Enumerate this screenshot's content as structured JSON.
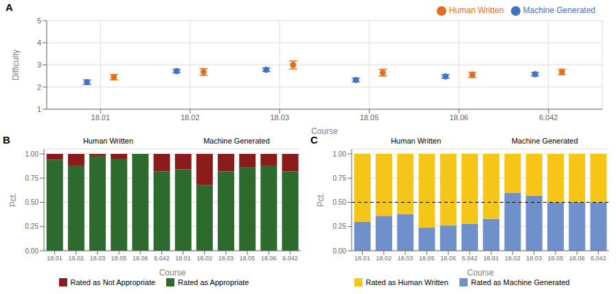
{
  "chart_data": [
    {
      "type": "scatter",
      "title": "A",
      "xlabel": "Course",
      "ylabel": "Difficulty",
      "categories": [
        "18.01",
        "18.02",
        "18.03",
        "18.05",
        "18.06",
        "6.042"
      ],
      "series": [
        {
          "name": "Machine Generated",
          "color": "#4472C4",
          "values": [
            2.22,
            2.72,
            2.78,
            2.32,
            2.48,
            2.58
          ],
          "error_low": [
            0.1,
            0.08,
            0.08,
            0.08,
            0.08,
            0.08
          ],
          "error_high": [
            0.1,
            0.08,
            0.08,
            0.08,
            0.08,
            0.08
          ]
        },
        {
          "name": "Human Written",
          "color": "#E07020",
          "values": [
            2.45,
            2.68,
            3.0,
            2.65,
            2.55,
            2.68
          ],
          "error_low": [
            0.12,
            0.15,
            0.18,
            0.15,
            0.12,
            0.12
          ],
          "error_high": [
            0.12,
            0.15,
            0.18,
            0.15,
            0.12,
            0.12
          ]
        }
      ],
      "ylim": [
        1,
        5
      ],
      "yticks": [
        1,
        2,
        3,
        4,
        5
      ],
      "grid": true,
      "legend": "top"
    },
    {
      "type": "bar",
      "stacked": true,
      "title": "B",
      "xlabel": "Course",
      "ylabel": "Pct.",
      "categories": [
        "18.01",
        "18.02",
        "18.03",
        "18.05",
        "18.06",
        "6.042",
        "18.01",
        "18.02",
        "18.03",
        "18.05",
        "18.06",
        "6.042"
      ],
      "annotations": [
        "Human Written",
        "Machine Generated"
      ],
      "series": [
        {
          "name": "Rated as Appropriate",
          "color": "#2d6a2d",
          "values": [
            0.94,
            0.88,
            0.98,
            0.95,
            1.0,
            0.82,
            0.84,
            0.68,
            0.82,
            0.86,
            0.88,
            0.82
          ]
        },
        {
          "name": "Rated as Not Appropriate",
          "color": "#8b1a1a",
          "values": [
            0.06,
            0.12,
            0.02,
            0.05,
            0.0,
            0.18,
            0.16,
            0.32,
            0.18,
            0.14,
            0.12,
            0.18
          ]
        }
      ],
      "ylim": [
        0,
        1.05
      ],
      "yticks": [
        {
          "value": 0,
          "label": "0.00"
        },
        {
          "value": 0.25,
          "label": "0.25"
        },
        {
          "value": 0.5,
          "label": "0.50"
        },
        {
          "value": 0.75,
          "label": "0.75"
        },
        {
          "value": 1,
          "label": "1.00"
        }
      ],
      "grid": "y",
      "legend": "bottom"
    },
    {
      "type": "bar",
      "stacked": true,
      "title": "C",
      "xlabel": "Course",
      "ylabel": "Pct.",
      "categories": [
        "18.01",
        "18.02",
        "18.03",
        "18.05",
        "18.06",
        "6.042",
        "18.01",
        "18.02",
        "18.03",
        "18.05",
        "18.06",
        "6.042"
      ],
      "annotations": [
        "Human Written",
        "Machine Generated"
      ],
      "series": [
        {
          "name": "Rated as Machine Generated",
          "color": "#7090CC",
          "values": [
            0.3,
            0.36,
            0.38,
            0.24,
            0.26,
            0.28,
            0.33,
            0.6,
            0.57,
            0.5,
            0.5,
            0.5
          ]
        },
        {
          "name": "Rated as Human Written",
          "color": "#F5C518",
          "values": [
            0.7,
            0.64,
            0.62,
            0.76,
            0.74,
            0.72,
            0.67,
            0.4,
            0.43,
            0.5,
            0.5,
            0.5
          ]
        }
      ],
      "hline": 0.5,
      "ylim": [
        0,
        1.05
      ],
      "yticks": [
        {
          "value": 0,
          "label": "0.00"
        },
        {
          "value": 0.25,
          "label": "0.25"
        },
        {
          "value": 0.5,
          "label": "0.50"
        },
        {
          "value": 0.75,
          "label": "0.75"
        },
        {
          "value": 1,
          "label": "1.00"
        }
      ],
      "grid": "y",
      "legend": "bottom"
    }
  ]
}
